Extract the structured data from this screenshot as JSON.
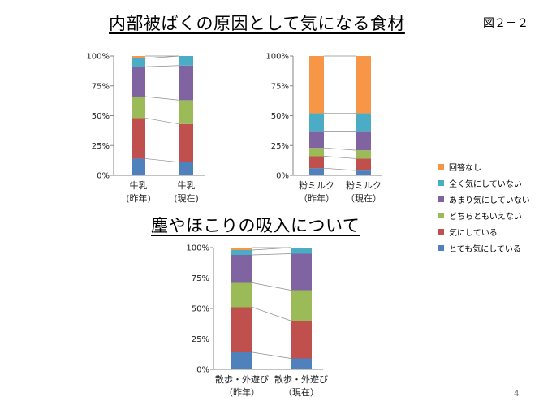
{
  "slide": {
    "title": "内部被ばくの原因として気になる食材",
    "figure_label": "図２－２",
    "section_heading": "塵やほこりの吸入について",
    "page_number": "4"
  },
  "legend": [
    {
      "name": "回答なし",
      "color": "#F79646"
    },
    {
      "name": "全く気にしていない",
      "color": "#4BACC6"
    },
    {
      "name": "あまり気にしていない",
      "color": "#8064A2"
    },
    {
      "name": "どちらともいえない",
      "color": "#9BBB59"
    },
    {
      "name": "気にしている",
      "color": "#C0504D"
    },
    {
      "name": "とても気にしている",
      "color": "#4F81BD"
    }
  ],
  "chart_data": [
    {
      "type": "bar",
      "stacked": "percent",
      "categories": [
        [
          "牛乳",
          "(昨年)"
        ],
        [
          "牛乳",
          "(現在)"
        ]
      ],
      "ylim": [
        0,
        100
      ],
      "yticks": [
        "0%",
        "25%",
        "50%",
        "75%",
        "100%"
      ],
      "series": [
        {
          "name": "とても気にしている",
          "values": [
            14,
            11
          ]
        },
        {
          "name": "気にしている",
          "values": [
            34,
            32
          ]
        },
        {
          "name": "どちらともいえない",
          "values": [
            18,
            20
          ]
        },
        {
          "name": "あまり気にしていない",
          "values": [
            25,
            29
          ]
        },
        {
          "name": "全く気にしていない",
          "values": [
            7,
            8
          ]
        },
        {
          "name": "回答なし",
          "values": [
            2,
            0
          ]
        }
      ]
    },
    {
      "type": "bar",
      "stacked": "percent",
      "categories": [
        [
          "粉ミルク",
          "（昨年）"
        ],
        [
          "粉ミルク",
          "（現在）"
        ]
      ],
      "ylim": [
        0,
        100
      ],
      "yticks": [
        "0%",
        "25%",
        "50%",
        "75%",
        "100%"
      ],
      "series": [
        {
          "name": "とても気にしている",
          "values": [
            6,
            4
          ]
        },
        {
          "name": "気にしている",
          "values": [
            10,
            10
          ]
        },
        {
          "name": "どちらともいえない",
          "values": [
            7,
            7
          ]
        },
        {
          "name": "あまり気にしていない",
          "values": [
            14,
            16
          ]
        },
        {
          "name": "全く気にしていない",
          "values": [
            15,
            15
          ]
        },
        {
          "name": "回答なし",
          "values": [
            48,
            48
          ]
        }
      ]
    },
    {
      "type": "bar",
      "stacked": "percent",
      "categories": [
        [
          "散歩・外遊び",
          "（昨年）"
        ],
        [
          "散歩・外遊び",
          "（現在）"
        ]
      ],
      "ylim": [
        0,
        100
      ],
      "yticks": [
        "0%",
        "25%",
        "50%",
        "75%",
        "100%"
      ],
      "series": [
        {
          "name": "とても気にしている",
          "values": [
            14,
            9
          ]
        },
        {
          "name": "気にしている",
          "values": [
            37,
            31
          ]
        },
        {
          "name": "どちらともいえない",
          "values": [
            20,
            25
          ]
        },
        {
          "name": "あまり気にしていない",
          "values": [
            23,
            30
          ]
        },
        {
          "name": "全く気にしていない",
          "values": [
            4,
            5
          ]
        },
        {
          "name": "回答なし",
          "values": [
            2,
            0
          ]
        }
      ]
    }
  ]
}
